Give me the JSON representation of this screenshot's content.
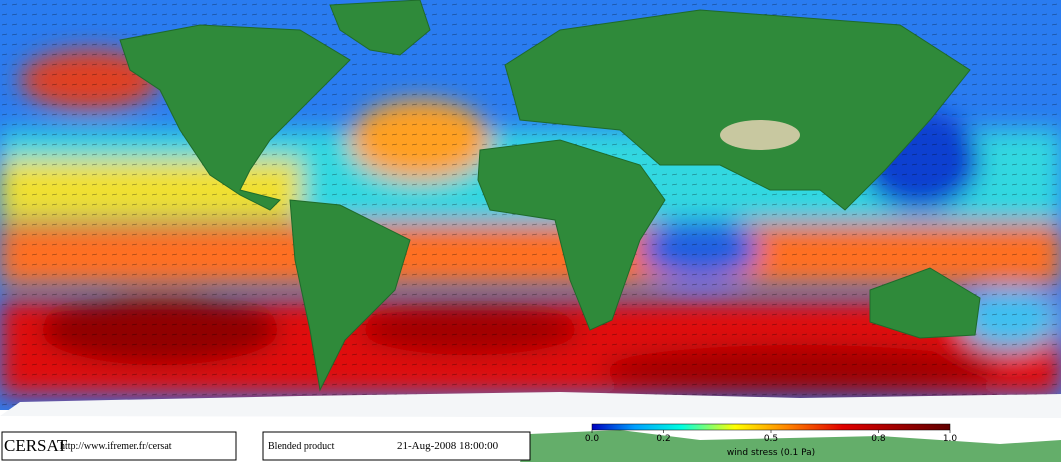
{
  "footer": {
    "logo": "CERSAT",
    "url": "http://www.ifremer.fr/cersat",
    "product": "Blended product",
    "date": "21-Aug-2008 18:00:00"
  },
  "colorbar": {
    "label": "wind stress (0.1 Pa)",
    "lim": [
      0,
      1
    ],
    "ticks": [
      {
        "value": 0,
        "label": "0.0"
      },
      0.2,
      0.5,
      0.8,
      {
        "value": 1,
        "label": "1.0"
      }
    ]
  }
}
